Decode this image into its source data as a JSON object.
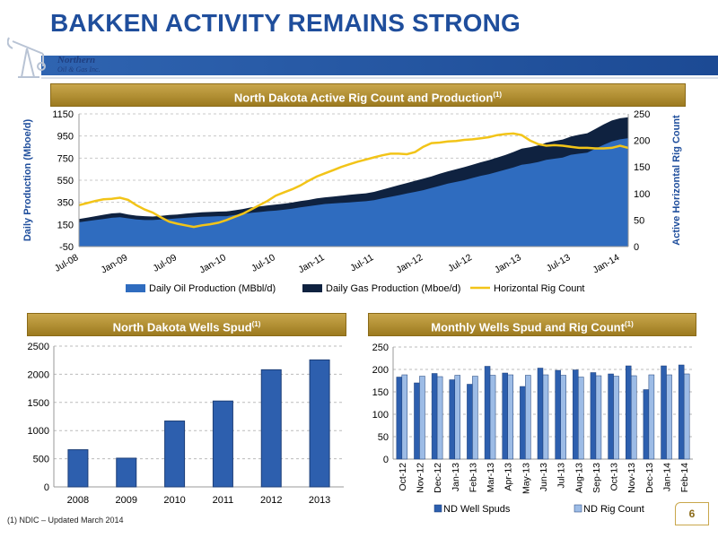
{
  "slide": {
    "title": "BAKKEN ACTIVITY REMAINS STRONG",
    "logo_line1": "Northern",
    "logo_line2": "Oil & Gas Inc.",
    "footnote": "(1)   NDIC – Updated March 2014",
    "page_number": "6",
    "colors": {
      "title": "#1f4e9c",
      "gold": "#b8942f",
      "oil": "#2f6cbf",
      "gas": "#0f2240",
      "rig_line": "#f2c418"
    }
  },
  "panels": {
    "top_title": "North Dakota Active Rig Count and Production",
    "top_sup": "(1)",
    "left_title": "North Dakota Wells Spud",
    "left_sup": "(1)",
    "right_title": "Monthly Wells Spud and Rig Count",
    "right_sup": "(1)"
  },
  "chart_data": [
    {
      "type": "area",
      "title": "North Dakota Active Rig Count and Production",
      "ylabel": "Daily Production (Mboe/d)",
      "y2label": "Active Horizontal Rig Count",
      "ylim": [
        -50,
        1150
      ],
      "yticks": [
        -50,
        150,
        350,
        550,
        750,
        950,
        1150
      ],
      "y2lim": [
        0,
        250
      ],
      "y2ticks": [
        0,
        50,
        100,
        150,
        200,
        250
      ],
      "xtick_labels": [
        "Jul-08",
        "Jan-09",
        "Jul-09",
        "Jan-10",
        "Jul-10",
        "Jan-11",
        "Jul-11",
        "Jan-12",
        "Jul-12",
        "Jan-13",
        "Jul-13",
        "Jan-14"
      ],
      "x": [
        "Jul-08",
        "Aug-08",
        "Sep-08",
        "Oct-08",
        "Nov-08",
        "Dec-08",
        "Jan-09",
        "Feb-09",
        "Mar-09",
        "Apr-09",
        "May-09",
        "Jun-09",
        "Jul-09",
        "Aug-09",
        "Sep-09",
        "Oct-09",
        "Nov-09",
        "Dec-09",
        "Jan-10",
        "Feb-10",
        "Mar-10",
        "Apr-10",
        "May-10",
        "Jun-10",
        "Jul-10",
        "Aug-10",
        "Sep-10",
        "Oct-10",
        "Nov-10",
        "Dec-10",
        "Jan-11",
        "Feb-11",
        "Mar-11",
        "Apr-11",
        "May-11",
        "Jun-11",
        "Jul-11",
        "Aug-11",
        "Sep-11",
        "Oct-11",
        "Nov-11",
        "Dec-11",
        "Jan-12",
        "Feb-12",
        "Mar-12",
        "Apr-12",
        "May-12",
        "Jun-12",
        "Jul-12",
        "Aug-12",
        "Sep-12",
        "Oct-12",
        "Nov-12",
        "Dec-12",
        "Jan-13",
        "Feb-13",
        "Mar-13",
        "Apr-13",
        "May-13",
        "Jun-13",
        "Jul-13",
        "Aug-13",
        "Sep-13",
        "Oct-13",
        "Nov-13",
        "Dec-13",
        "Jan-14",
        "Feb-14"
      ],
      "series": [
        {
          "name": "Daily Oil Production (MBbl/d)",
          "type": "area",
          "color": "#2f6cbf",
          "values": [
            170,
            180,
            190,
            200,
            210,
            215,
            205,
            195,
            190,
            190,
            195,
            200,
            205,
            210,
            215,
            220,
            222,
            225,
            225,
            235,
            245,
            255,
            262,
            270,
            275,
            283,
            292,
            305,
            315,
            325,
            335,
            340,
            345,
            350,
            355,
            360,
            370,
            385,
            400,
            415,
            430,
            445,
            460,
            480,
            500,
            520,
            535,
            550,
            570,
            590,
            605,
            625,
            645,
            665,
            690,
            700,
            715,
            735,
            745,
            755,
            780,
            790,
            800,
            835,
            870,
            900,
            920,
            930
          ]
        },
        {
          "name": "Daily Gas Production (Mboe/d)",
          "type": "area",
          "color": "#0f2240",
          "values": [
            200,
            212,
            225,
            238,
            250,
            255,
            240,
            230,
            225,
            222,
            228,
            235,
            240,
            248,
            254,
            260,
            263,
            266,
            268,
            278,
            290,
            305,
            313,
            322,
            330,
            338,
            348,
            362,
            372,
            385,
            395,
            402,
            410,
            418,
            425,
            432,
            445,
            465,
            485,
            505,
            525,
            545,
            565,
            585,
            608,
            630,
            650,
            668,
            690,
            712,
            732,
            755,
            778,
            805,
            835,
            848,
            865,
            890,
            905,
            918,
            945,
            962,
            975,
            1015,
            1055,
            1090,
            1110,
            1120
          ]
        },
        {
          "name": "Horizontal Rig Count",
          "type": "line",
          "axis": "right",
          "color": "#f2c418",
          "values": [
            78,
            82,
            86,
            89,
            90,
            92,
            88,
            78,
            70,
            64,
            55,
            47,
            43,
            40,
            37,
            40,
            42,
            45,
            50,
            56,
            62,
            70,
            78,
            86,
            96,
            102,
            108,
            115,
            124,
            132,
            138,
            144,
            150,
            155,
            160,
            164,
            168,
            172,
            175,
            175,
            174,
            178,
            188,
            195,
            196,
            198,
            199,
            201,
            202,
            204,
            206,
            210,
            212,
            213,
            210,
            200,
            193,
            190,
            191,
            190,
            188,
            186,
            186,
            185,
            185,
            186,
            190,
            186
          ]
        }
      ]
    },
    {
      "type": "bar",
      "title": "North Dakota Wells Spud",
      "categories": [
        "2008",
        "2009",
        "2010",
        "2011",
        "2012",
        "2013"
      ],
      "values": [
        660,
        510,
        1170,
        1525,
        2080,
        2255
      ],
      "ylim": [
        0,
        2500
      ],
      "yticks": [
        0,
        500,
        1000,
        1500,
        2000,
        2500
      ]
    },
    {
      "type": "bar",
      "title": "Monthly Wells Spud and Rig Count",
      "categories": [
        "Oct-12",
        "Nov-12",
        "Dec-12",
        "Jan-13",
        "Feb-13",
        "Mar-13",
        "Apr-13",
        "May-13",
        "Jun-13",
        "Jul-13",
        "Aug-13",
        "Sep-13",
        "Oct-13",
        "Nov-13",
        "Dec-13",
        "Jan-14",
        "Feb-14"
      ],
      "ylim": [
        0,
        250
      ],
      "yticks": [
        0,
        50,
        100,
        150,
        200,
        250
      ],
      "series": [
        {
          "name": "ND Well Spuds",
          "color": "#2d5fae",
          "values": [
            183,
            170,
            191,
            177,
            167,
            207,
            192,
            162,
            203,
            198,
            199,
            193,
            190,
            208,
            155,
            208,
            210
          ]
        },
        {
          "name": "ND Rig Count",
          "color": "#9dbce6",
          "values": [
            188,
            185,
            184,
            187,
            185,
            187,
            188,
            187,
            188,
            187,
            183,
            186,
            185,
            186,
            188,
            188,
            190
          ]
        }
      ]
    }
  ]
}
